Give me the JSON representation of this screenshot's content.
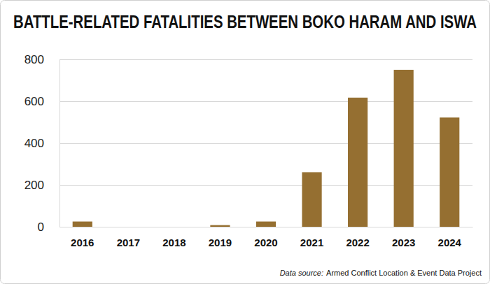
{
  "chart_data": {
    "type": "bar",
    "title": "BATTLE-RELATED FATALITIES BETWEEN BOKO HARAM AND ISWA",
    "categories": [
      "2016",
      "2017",
      "2018",
      "2019",
      "2020",
      "2021",
      "2022",
      "2023",
      "2024"
    ],
    "values": [
      25,
      0,
      0,
      8,
      25,
      260,
      617,
      750,
      522
    ],
    "color": "#956f31",
    "ylim": [
      0,
      800
    ],
    "yticks": [
      0,
      200,
      400,
      600,
      800
    ],
    "grid": true,
    "source": {
      "label": "Data source:",
      "text": "Armed Conflict Location & Event Data Project"
    }
  }
}
